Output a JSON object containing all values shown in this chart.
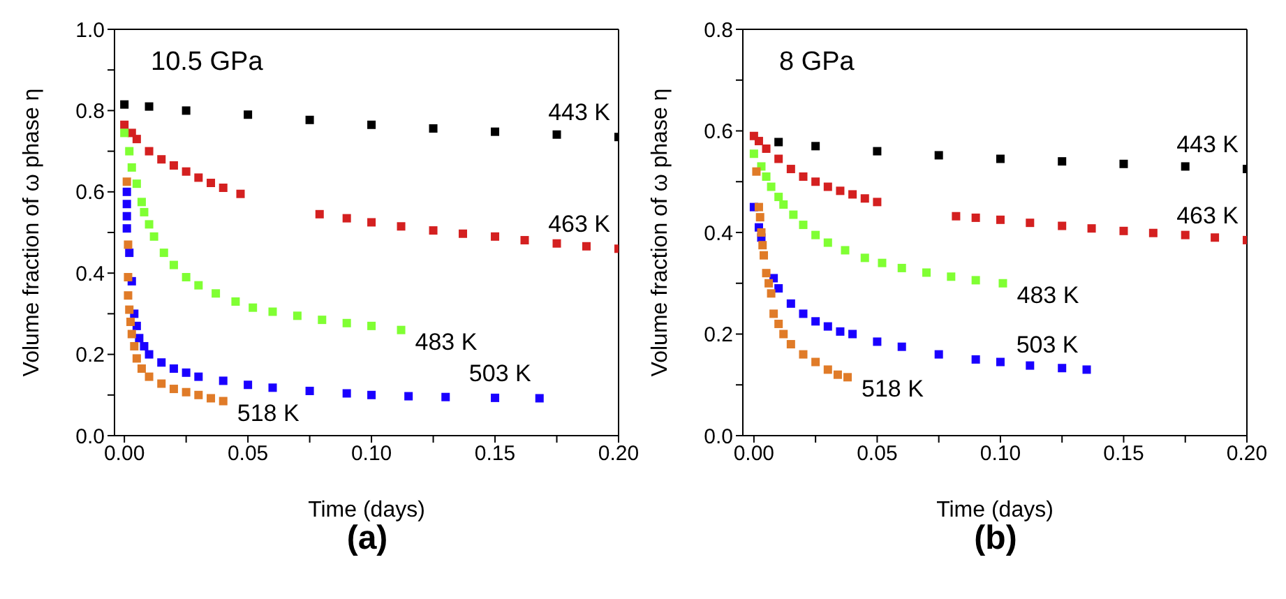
{
  "chart_data": [
    {
      "type": "scatter",
      "subtitle": "(a)",
      "xlabel": "Time (days)",
      "ylabel": "Volume fraction of  ω phase η",
      "marker": "square",
      "grid": false,
      "legend": false,
      "xlim": [
        -0.004,
        0.2
      ],
      "xticks": [
        {
          "value": 0,
          "label": "0.00"
        },
        {
          "value": 0.025,
          "label": null
        },
        {
          "value": 0.05,
          "label": "0.05"
        },
        {
          "value": 0.075,
          "label": null
        },
        {
          "value": 0.1,
          "label": "0.10"
        },
        {
          "value": 0.125,
          "label": null
        },
        {
          "value": 0.15,
          "label": "0.15"
        },
        {
          "value": 0.175,
          "label": null
        },
        {
          "value": 0.2,
          "label": "0.20"
        }
      ],
      "ylim": [
        0,
        1
      ],
      "yticks": [
        {
          "value": 0,
          "label": "0.0"
        },
        {
          "value": 0.1,
          "label": null
        },
        {
          "value": 0.2,
          "label": "0.2"
        },
        {
          "value": 0.3,
          "label": null
        },
        {
          "value": 0.4,
          "label": "0.4"
        },
        {
          "value": 0.5,
          "label": null
        },
        {
          "value": 0.6,
          "label": "0.6"
        },
        {
          "value": 0.7,
          "label": null
        },
        {
          "value": 0.8,
          "label": "0.8"
        },
        {
          "value": 0.9,
          "label": null
        },
        {
          "value": 1,
          "label": "1.0"
        }
      ],
      "annotations": [
        "10.5 GPa"
      ],
      "series": [
        {
          "name": "443 K",
          "color": "#000000",
          "x": [
            0,
            0.01,
            0.025,
            0.05,
            0.075,
            0.1,
            0.125,
            0.15,
            0.175,
            0.2
          ],
          "values": [
            0.815,
            0.81,
            0.8,
            0.79,
            0.777,
            0.765,
            0.756,
            0.748,
            0.741,
            0.735
          ]
        },
        {
          "name": "463 K",
          "color": "#d42020",
          "x": [
            0,
            0.003,
            0.005,
            0.01,
            0.015,
            0.02,
            0.025,
            0.03,
            0.035,
            0.04,
            0.047,
            0.079,
            0.09,
            0.1,
            0.112,
            0.125,
            0.137,
            0.15,
            0.162,
            0.175,
            0.187,
            0.2
          ],
          "values": [
            0.765,
            0.745,
            0.73,
            0.7,
            0.68,
            0.665,
            0.65,
            0.635,
            0.622,
            0.61,
            0.595,
            0.545,
            0.535,
            0.525,
            0.515,
            0.505,
            0.497,
            0.49,
            0.481,
            0.473,
            0.466,
            0.46
          ]
        },
        {
          "name": "483 K",
          "color": "#80ff33",
          "x": [
            0,
            0.002,
            0.003,
            0.005,
            0.007,
            0.008,
            0.01,
            0.012,
            0.016,
            0.02,
            0.025,
            0.03,
            0.037,
            0.045,
            0.052,
            0.06,
            0.07,
            0.08,
            0.09,
            0.1,
            0.112
          ],
          "values": [
            0.745,
            0.7,
            0.66,
            0.62,
            0.575,
            0.55,
            0.52,
            0.49,
            0.45,
            0.42,
            0.39,
            0.37,
            0.35,
            0.33,
            0.315,
            0.305,
            0.295,
            0.285,
            0.277,
            0.27,
            0.26
          ]
        },
        {
          "name": "503 K",
          "color": "#1a00ff",
          "x": [
            0.001,
            0.001,
            0.001,
            0.001,
            0.002,
            0.003,
            0.004,
            0.005,
            0.006,
            0.008,
            0.01,
            0.015,
            0.02,
            0.025,
            0.03,
            0.04,
            0.05,
            0.06,
            0.075,
            0.09,
            0.1,
            0.115,
            0.13,
            0.15,
            0.168
          ],
          "values": [
            0.6,
            0.57,
            0.54,
            0.51,
            0.45,
            0.38,
            0.3,
            0.27,
            0.24,
            0.22,
            0.2,
            0.18,
            0.165,
            0.155,
            0.145,
            0.135,
            0.125,
            0.118,
            0.11,
            0.104,
            0.1,
            0.097,
            0.095,
            0.093,
            0.092
          ]
        },
        {
          "name": "518 K",
          "color": "#e07b28",
          "x": [
            0.001,
            0.0015,
            0.0015,
            0.0015,
            0.002,
            0.0025,
            0.003,
            0.004,
            0.005,
            0.007,
            0.01,
            0.015,
            0.02,
            0.025,
            0.03,
            0.035,
            0.04
          ],
          "values": [
            0.625,
            0.47,
            0.39,
            0.345,
            0.31,
            0.28,
            0.25,
            0.22,
            0.19,
            0.165,
            0.145,
            0.128,
            0.115,
            0.107,
            0.1,
            0.092,
            0.085
          ]
        }
      ]
    },
    {
      "type": "scatter",
      "subtitle": "(b)",
      "xlabel": "Time (days)",
      "ylabel": "Volume fraction of  ω phase η",
      "marker": "square",
      "grid": false,
      "legend": false,
      "xlim": [
        -0.0045,
        0.2
      ],
      "xticks": [
        {
          "value": 0,
          "label": "0.00"
        },
        {
          "value": 0.025,
          "label": null
        },
        {
          "value": 0.05,
          "label": "0.05"
        },
        {
          "value": 0.075,
          "label": null
        },
        {
          "value": 0.1,
          "label": "0.10"
        },
        {
          "value": 0.125,
          "label": null
        },
        {
          "value": 0.15,
          "label": "0.15"
        },
        {
          "value": 0.175,
          "label": null
        },
        {
          "value": 0.2,
          "label": "0.20"
        }
      ],
      "ylim": [
        0,
        0.8
      ],
      "yticks": [
        {
          "value": 0,
          "label": "0.0"
        },
        {
          "value": 0.1,
          "label": null
        },
        {
          "value": 0.2,
          "label": "0.2"
        },
        {
          "value": 0.3,
          "label": null
        },
        {
          "value": 0.4,
          "label": "0.4"
        },
        {
          "value": 0.5,
          "label": null
        },
        {
          "value": 0.6,
          "label": "0.6"
        },
        {
          "value": 0.7,
          "label": null
        },
        {
          "value": 0.8,
          "label": "0.8"
        }
      ],
      "annotations": [
        "8 GPa"
      ],
      "series": [
        {
          "name": "443 K",
          "color": "#000000",
          "x": [
            0.01,
            0.025,
            0.05,
            0.075,
            0.1,
            0.125,
            0.15,
            0.175,
            0.2
          ],
          "values": [
            0.578,
            0.57,
            0.56,
            0.552,
            0.545,
            0.54,
            0.535,
            0.53,
            0.525
          ]
        },
        {
          "name": "463 K",
          "color": "#d42020",
          "x": [
            0,
            0.002,
            0.005,
            0.01,
            0.015,
            0.02,
            0.025,
            0.03,
            0.035,
            0.04,
            0.045,
            0.05,
            0.082,
            0.09,
            0.1,
            0.112,
            0.125,
            0.137,
            0.15,
            0.162,
            0.175,
            0.187,
            0.2
          ],
          "values": [
            0.59,
            0.58,
            0.565,
            0.545,
            0.525,
            0.51,
            0.5,
            0.49,
            0.482,
            0.475,
            0.467,
            0.46,
            0.432,
            0.429,
            0.425,
            0.419,
            0.413,
            0.408,
            0.403,
            0.399,
            0.395,
            0.39,
            0.385
          ]
        },
        {
          "name": "483 K",
          "color": "#80ff33",
          "x": [
            0,
            0.003,
            0.005,
            0.007,
            0.01,
            0.012,
            0.016,
            0.02,
            0.025,
            0.03,
            0.037,
            0.045,
            0.052,
            0.06,
            0.07,
            0.08,
            0.09,
            0.101
          ],
          "values": [
            0.555,
            0.53,
            0.51,
            0.49,
            0.47,
            0.455,
            0.435,
            0.415,
            0.395,
            0.38,
            0.365,
            0.35,
            0.34,
            0.33,
            0.321,
            0.313,
            0.306,
            0.3
          ]
        },
        {
          "name": "503 K",
          "color": "#1a00ff",
          "x": [
            0,
            0.002,
            0.003,
            0.008,
            0.01,
            0.015,
            0.02,
            0.025,
            0.03,
            0.035,
            0.04,
            0.05,
            0.06,
            0.075,
            0.09,
            0.1,
            0.112,
            0.125,
            0.135
          ],
          "values": [
            0.45,
            0.41,
            0.39,
            0.31,
            0.29,
            0.26,
            0.24,
            0.225,
            0.215,
            0.205,
            0.2,
            0.185,
            0.175,
            0.16,
            0.15,
            0.145,
            0.138,
            0.133,
            0.13
          ]
        },
        {
          "name": "518 K",
          "color": "#e07b28",
          "x": [
            0.001,
            0.002,
            0.0025,
            0.003,
            0.0035,
            0.004,
            0.005,
            0.006,
            0.007,
            0.008,
            0.01,
            0.012,
            0.015,
            0.02,
            0.025,
            0.03,
            0.034,
            0.038
          ],
          "values": [
            0.52,
            0.45,
            0.43,
            0.4,
            0.375,
            0.355,
            0.32,
            0.3,
            0.28,
            0.24,
            0.22,
            0.2,
            0.18,
            0.16,
            0.145,
            0.13,
            0.12,
            0.115
          ]
        }
      ]
    }
  ]
}
